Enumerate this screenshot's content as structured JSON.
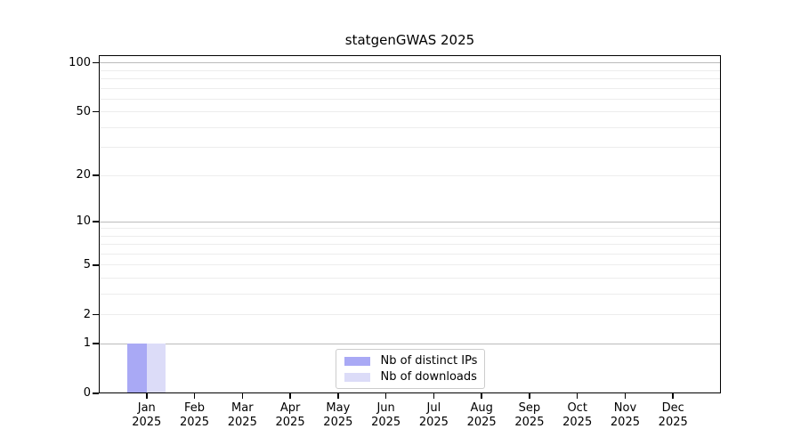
{
  "chart_data": {
    "type": "bar",
    "title": "statgenGWAS 2025",
    "categories": [
      "Jan 2025",
      "Feb 2025",
      "Mar 2025",
      "Apr 2025",
      "May 2025",
      "Jun 2025",
      "Jul 2025",
      "Aug 2025",
      "Sep 2025",
      "Oct 2025",
      "Nov 2025",
      "Dec 2025"
    ],
    "series": [
      {
        "name": "Nb of distinct IPs",
        "color": "#a9a9f5",
        "values": [
          1,
          0,
          0,
          0,
          0,
          0,
          0,
          0,
          0,
          0,
          0,
          0
        ]
      },
      {
        "name": "Nb of downloads",
        "color": "#dcdcf8",
        "values": [
          1,
          0,
          0,
          0,
          0,
          0,
          0,
          0,
          0,
          0,
          0,
          0
        ]
      }
    ],
    "xlabel": "",
    "ylabel": "",
    "y_scale": "log1p",
    "ylim": [
      0,
      100
    ],
    "y_ticks": [
      0,
      1,
      2,
      5,
      10,
      20,
      50,
      100
    ],
    "grid": true,
    "gridlines": {
      "major": [
        1,
        10,
        100
      ],
      "minor": [
        2,
        3,
        4,
        5,
        6,
        7,
        8,
        9,
        20,
        30,
        40,
        50,
        60,
        70,
        80,
        90
      ],
      "major_color": "#bbbbbb",
      "minor_color": "#ededed"
    },
    "legend_position": "bottom-center",
    "axis_color": "#000000",
    "background_color": "#ffffff"
  }
}
